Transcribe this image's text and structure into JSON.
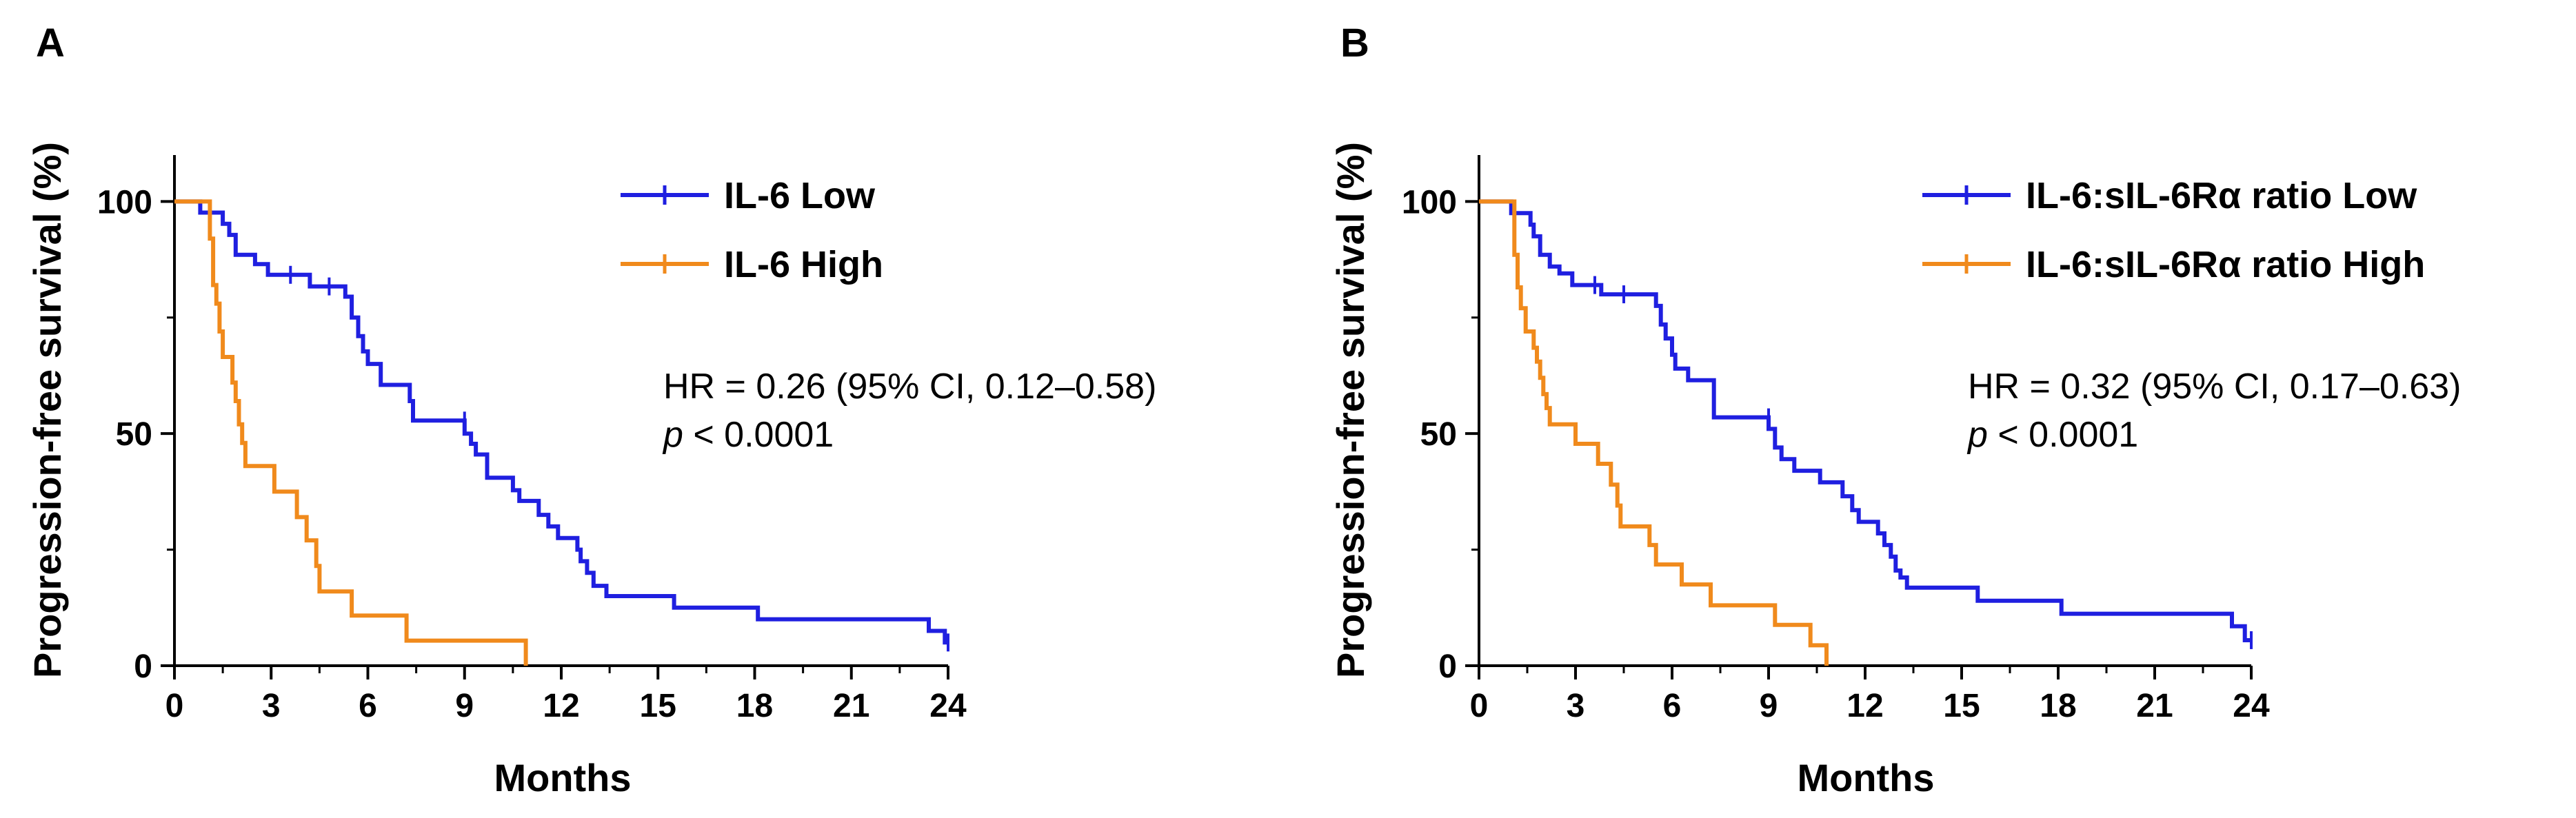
{
  "chart_data": [
    {
      "type": "line",
      "panel_label": "A",
      "xlabel": "Months",
      "ylabel": "Progression-free survival (%)",
      "xlim": [
        0,
        24
      ],
      "ylim": [
        0,
        110
      ],
      "xticks": [
        0,
        3,
        6,
        9,
        12,
        15,
        18,
        21,
        24
      ],
      "yticks": [
        0,
        50,
        100
      ],
      "legend_position": "top-right",
      "annotation": {
        "hr": "HR = 0.26 (95% CI, 0.12–0.58)",
        "p_symbol": "p",
        "p_value": " < 0.0001"
      },
      "series": [
        {
          "name": "IL-6 Low",
          "color": "#1f1fe0",
          "points": [
            [
              0,
              100
            ],
            [
              0.8,
              100
            ],
            [
              0.8,
              97.6
            ],
            [
              1.5,
              97.6
            ],
            [
              1.5,
              95.2
            ],
            [
              1.7,
              95.2
            ],
            [
              1.7,
              92.8
            ],
            [
              1.9,
              92.8
            ],
            [
              1.9,
              88.5
            ],
            [
              2.5,
              88.5
            ],
            [
              2.5,
              86.5
            ],
            [
              2.9,
              86.5
            ],
            [
              2.9,
              84.2
            ],
            [
              4.2,
              84.2
            ],
            [
              4.2,
              81.7
            ],
            [
              5.3,
              81.7
            ],
            [
              5.3,
              79.5
            ],
            [
              5.5,
              79.5
            ],
            [
              5.5,
              75.0
            ],
            [
              5.7,
              75.0
            ],
            [
              5.7,
              71.0
            ],
            [
              5.85,
              71.0
            ],
            [
              5.85,
              67.7
            ],
            [
              6.0,
              67.7
            ],
            [
              6.0,
              65.0
            ],
            [
              6.4,
              65.0
            ],
            [
              6.4,
              60.5
            ],
            [
              7.3,
              60.5
            ],
            [
              7.3,
              57.0
            ],
            [
              7.4,
              57.0
            ],
            [
              7.4,
              52.8
            ],
            [
              9.0,
              52.8
            ],
            [
              9.0,
              50.0
            ],
            [
              9.2,
              50.0
            ],
            [
              9.2,
              47.8
            ],
            [
              9.35,
              47.8
            ],
            [
              9.35,
              45.5
            ],
            [
              9.7,
              45.5
            ],
            [
              9.7,
              40.5
            ],
            [
              10.5,
              40.5
            ],
            [
              10.5,
              37.8
            ],
            [
              10.7,
              37.8
            ],
            [
              10.7,
              35.5
            ],
            [
              11.3,
              35.5
            ],
            [
              11.3,
              32.5
            ],
            [
              11.6,
              32.5
            ],
            [
              11.6,
              30.0
            ],
            [
              11.9,
              30.0
            ],
            [
              11.9,
              27.5
            ],
            [
              12.5,
              27.5
            ],
            [
              12.5,
              25.0
            ],
            [
              12.6,
              25.0
            ],
            [
              12.6,
              22.5
            ],
            [
              12.8,
              22.5
            ],
            [
              12.8,
              20.0
            ],
            [
              13.0,
              20.0
            ],
            [
              13.0,
              17.2
            ],
            [
              13.4,
              17.2
            ],
            [
              13.4,
              15.0
            ],
            [
              15.5,
              15.0
            ],
            [
              15.5,
              12.5
            ],
            [
              18.1,
              12.5
            ],
            [
              18.1,
              10.0
            ],
            [
              23.4,
              10.0
            ],
            [
              23.4,
              7.5
            ],
            [
              23.9,
              7.5
            ],
            [
              23.9,
              5.0
            ],
            [
              24.0,
              5.0
            ]
          ],
          "censor_marks": [
            [
              3.6,
              84.2
            ],
            [
              4.8,
              81.7
            ],
            [
              9.0,
              52.8
            ],
            [
              24.0,
              5.0
            ]
          ]
        },
        {
          "name": "IL-6 High",
          "color": "#f08a1c",
          "points": [
            [
              0,
              100
            ],
            [
              1.1,
              100
            ],
            [
              1.1,
              92.0
            ],
            [
              1.2,
              92.0
            ],
            [
              1.2,
              82.0
            ],
            [
              1.3,
              82.0
            ],
            [
              1.3,
              78.0
            ],
            [
              1.4,
              78.0
            ],
            [
              1.4,
              72.0
            ],
            [
              1.5,
              72.0
            ],
            [
              1.5,
              66.5
            ],
            [
              1.8,
              66.5
            ],
            [
              1.8,
              61.0
            ],
            [
              1.9,
              61.0
            ],
            [
              1.9,
              57.0
            ],
            [
              2.0,
              57.0
            ],
            [
              2.0,
              52.0
            ],
            [
              2.1,
              52.0
            ],
            [
              2.1,
              48.0
            ],
            [
              2.2,
              48.0
            ],
            [
              2.2,
              43.0
            ],
            [
              3.1,
              43.0
            ],
            [
              3.1,
              37.5
            ],
            [
              3.8,
              37.5
            ],
            [
              3.8,
              32.0
            ],
            [
              4.1,
              32.0
            ],
            [
              4.1,
              27.0
            ],
            [
              4.4,
              27.0
            ],
            [
              4.4,
              21.5
            ],
            [
              4.5,
              21.5
            ],
            [
              4.5,
              16.0
            ],
            [
              5.5,
              16.0
            ],
            [
              5.5,
              10.8
            ],
            [
              7.2,
              10.8
            ],
            [
              7.2,
              5.4
            ],
            [
              10.9,
              5.4
            ],
            [
              10.9,
              0
            ]
          ],
          "censor_marks": []
        }
      ]
    },
    {
      "type": "line",
      "panel_label": "B",
      "xlabel": "Months",
      "ylabel": "Progression-free survival (%)",
      "xlim": [
        0,
        24
      ],
      "ylim": [
        0,
        110
      ],
      "xticks": [
        0,
        3,
        6,
        9,
        12,
        15,
        18,
        21,
        24
      ],
      "yticks": [
        0,
        50,
        100
      ],
      "legend_position": "top-right",
      "annotation": {
        "hr": "HR = 0.32 (95% CI, 0.17–0.63)",
        "p_symbol": "p",
        "p_value": " < 0.0001"
      },
      "series": [
        {
          "name": "IL-6:sIL-6Rα ratio Low",
          "color": "#1f1fe0",
          "points": [
            [
              0,
              100
            ],
            [
              1.0,
              100
            ],
            [
              1.0,
              97.5
            ],
            [
              1.6,
              97.5
            ],
            [
              1.6,
              95.0
            ],
            [
              1.7,
              95.0
            ],
            [
              1.7,
              92.5
            ],
            [
              1.9,
              92.5
            ],
            [
              1.9,
              88.5
            ],
            [
              2.2,
              88.5
            ],
            [
              2.2,
              86.0
            ],
            [
              2.5,
              86.0
            ],
            [
              2.5,
              84.5
            ],
            [
              2.9,
              84.5
            ],
            [
              2.9,
              82.0
            ],
            [
              3.8,
              82.0
            ],
            [
              3.8,
              80.0
            ],
            [
              5.5,
              80.0
            ],
            [
              5.5,
              77.5
            ],
            [
              5.65,
              77.5
            ],
            [
              5.65,
              73.5
            ],
            [
              5.8,
              73.5
            ],
            [
              5.8,
              70.5
            ],
            [
              6.0,
              70.5
            ],
            [
              6.0,
              67.0
            ],
            [
              6.1,
              67.0
            ],
            [
              6.1,
              64.0
            ],
            [
              6.5,
              64.0
            ],
            [
              6.5,
              61.5
            ],
            [
              7.3,
              61.5
            ],
            [
              7.3,
              53.5
            ],
            [
              9.0,
              53.5
            ],
            [
              9.0,
              51.0
            ],
            [
              9.2,
              51.0
            ],
            [
              9.2,
              47.0
            ],
            [
              9.4,
              47.0
            ],
            [
              9.4,
              44.5
            ],
            [
              9.8,
              44.5
            ],
            [
              9.8,
              42.0
            ],
            [
              10.6,
              42.0
            ],
            [
              10.6,
              39.5
            ],
            [
              11.3,
              39.5
            ],
            [
              11.3,
              36.5
            ],
            [
              11.6,
              36.5
            ],
            [
              11.6,
              33.5
            ],
            [
              11.8,
              33.5
            ],
            [
              11.8,
              31.0
            ],
            [
              12.4,
              31.0
            ],
            [
              12.4,
              28.5
            ],
            [
              12.6,
              28.5
            ],
            [
              12.6,
              26.0
            ],
            [
              12.8,
              26.0
            ],
            [
              12.8,
              23.5
            ],
            [
              12.95,
              23.5
            ],
            [
              12.95,
              20.5
            ],
            [
              13.1,
              20.5
            ],
            [
              13.1,
              19.0
            ],
            [
              13.3,
              19.0
            ],
            [
              13.3,
              16.8
            ],
            [
              15.5,
              16.8
            ],
            [
              15.5,
              14.0
            ],
            [
              18.1,
              14.0
            ],
            [
              18.1,
              11.2
            ],
            [
              23.4,
              11.2
            ],
            [
              23.4,
              8.5
            ],
            [
              23.8,
              8.5
            ],
            [
              23.8,
              5.5
            ],
            [
              24.0,
              5.5
            ]
          ],
          "censor_marks": [
            [
              3.6,
              82.0
            ],
            [
              4.5,
              80.0
            ],
            [
              9.0,
              53.5
            ],
            [
              24.0,
              5.5
            ]
          ]
        },
        {
          "name": "IL-6:sIL-6Rα ratio High",
          "color": "#f08a1c",
          "points": [
            [
              0,
              100
            ],
            [
              1.1,
              100
            ],
            [
              1.1,
              88.5
            ],
            [
              1.2,
              88.5
            ],
            [
              1.2,
              81.5
            ],
            [
              1.3,
              81.5
            ],
            [
              1.3,
              77.0
            ],
            [
              1.45,
              77.0
            ],
            [
              1.45,
              72.0
            ],
            [
              1.7,
              72.0
            ],
            [
              1.7,
              68.5
            ],
            [
              1.8,
              68.5
            ],
            [
              1.8,
              65.5
            ],
            [
              1.9,
              65.5
            ],
            [
              1.9,
              62.0
            ],
            [
              2.0,
              62.0
            ],
            [
              2.0,
              58.5
            ],
            [
              2.1,
              58.5
            ],
            [
              2.1,
              55.5
            ],
            [
              2.2,
              55.5
            ],
            [
              2.2,
              52.0
            ],
            [
              3.0,
              52.0
            ],
            [
              3.0,
              47.8
            ],
            [
              3.7,
              47.8
            ],
            [
              3.7,
              43.5
            ],
            [
              4.1,
              43.5
            ],
            [
              4.1,
              39.0
            ],
            [
              4.3,
              39.0
            ],
            [
              4.3,
              34.5
            ],
            [
              4.4,
              34.5
            ],
            [
              4.4,
              30.0
            ],
            [
              5.3,
              30.0
            ],
            [
              5.3,
              26.0
            ],
            [
              5.5,
              26.0
            ],
            [
              5.5,
              21.8
            ],
            [
              6.3,
              21.8
            ],
            [
              6.3,
              17.5
            ],
            [
              7.2,
              17.5
            ],
            [
              7.2,
              13.0
            ],
            [
              9.2,
              13.0
            ],
            [
              9.2,
              8.8
            ],
            [
              10.3,
              8.8
            ],
            [
              10.3,
              4.4
            ],
            [
              10.8,
              4.4
            ],
            [
              10.8,
              0
            ]
          ],
          "censor_marks": []
        }
      ]
    }
  ]
}
